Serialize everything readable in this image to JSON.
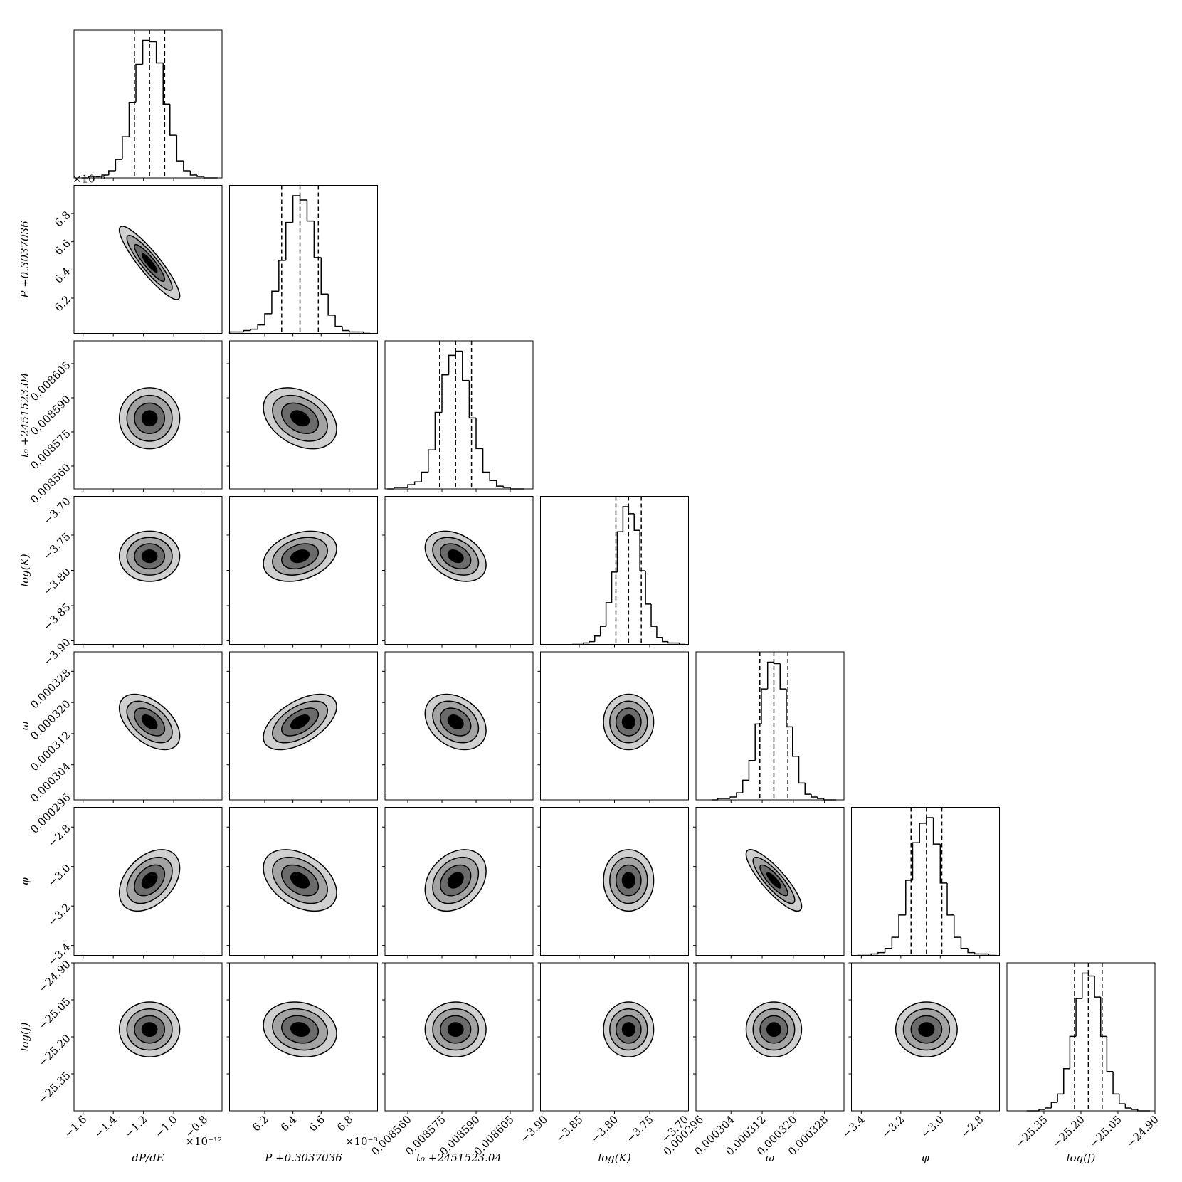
{
  "chart_data": {
    "type": "corner",
    "params": [
      {
        "label": "dP/dE",
        "offset_text": "×10⁻¹²",
        "lim": [
          -1.66,
          -0.68
        ],
        "ticks": [
          {
            "value": -1.6,
            "label": "−1.6"
          },
          {
            "value": -1.4,
            "label": "−1.4"
          },
          {
            "value": -1.2,
            "label": "−1.2"
          },
          {
            "value": -1.0,
            "label": "−1.0"
          },
          {
            "value": -0.8,
            "label": "−0.8"
          }
        ],
        "mean": -1.16,
        "std": 0.1,
        "quantiles": [
          -1.26,
          -1.16,
          -1.06
        ],
        "bins": [
          -1.61,
          -1.565,
          -1.52,
          -1.475,
          -1.43,
          -1.385,
          -1.34,
          -1.295,
          -1.25,
          -1.205,
          -1.16,
          -1.115,
          -1.07,
          -1.025,
          -0.98,
          -0.935,
          -0.89,
          -0.845,
          -0.8,
          -0.755,
          -0.71
        ],
        "counts": [
          0,
          1,
          1,
          2,
          5,
          13,
          29,
          53,
          80,
          97,
          96,
          81,
          52,
          30,
          12,
          5,
          2,
          1,
          0,
          0
        ]
      },
      {
        "label": "P +0.3037036",
        "offset_text": "×10⁻⁸",
        "lim": [
          5.95,
          7.0
        ],
        "ticks": [
          6.2,
          6.4,
          6.6,
          6.8
        ],
        "mean": 6.45,
        "std": 0.13,
        "quantiles": [
          6.32,
          6.45,
          6.58
        ],
        "bins": [
          5.95,
          6.0,
          6.05,
          6.1,
          6.15,
          6.2,
          6.25,
          6.3,
          6.35,
          6.4,
          6.45,
          6.5,
          6.55,
          6.6,
          6.65,
          6.7,
          6.75,
          6.8,
          6.85,
          6.9,
          6.95
        ],
        "counts": [
          1,
          1,
          2,
          3,
          6,
          14,
          30,
          52,
          79,
          98,
          95,
          80,
          54,
          28,
          13,
          5,
          2,
          1,
          1,
          0
        ]
      },
      {
        "label": "t₀ +2451523.04",
        "lim": [
          0.00855,
          0.008615
        ],
        "ticks": [
          {
            "value": 0.00856,
            "label": "0.008560"
          },
          0.008575,
          {
            "value": 0.00859,
            "label": "0.008590"
          },
          0.008605
        ],
        "mean": 0.008581,
        "std": 6.7e-06,
        "quantiles": [
          0.008574,
          0.008581,
          0.008588
        ],
        "bins": [
          0.008551,
          0.008554,
          0.008557,
          0.00856,
          0.008563,
          0.008566,
          0.008569,
          0.008572,
          0.008575,
          0.008578,
          0.008581,
          0.008584,
          0.008587,
          0.00859,
          0.008593,
          0.008596,
          0.008599,
          0.008602,
          0.008605,
          0.008608,
          0.008611
        ],
        "counts": [
          0,
          1,
          1,
          3,
          5,
          12,
          28,
          55,
          82,
          96,
          99,
          78,
          51,
          29,
          12,
          6,
          2,
          1,
          0,
          0
        ]
      },
      {
        "label": "log(K)",
        "lim": [
          -3.905,
          -3.695
        ],
        "ticks": [
          {
            "value": -3.9,
            "label": "−3.90"
          },
          {
            "value": -3.85,
            "label": "−3.85"
          },
          {
            "value": -3.8,
            "label": "−3.80"
          },
          {
            "value": -3.75,
            "label": "−3.75"
          },
          {
            "value": -3.7,
            "label": "−3.70"
          }
        ],
        "mean": -3.78,
        "std": 0.0178,
        "quantiles": [
          -3.798,
          -3.78,
          -3.762
        ],
        "bins": [
          -3.86,
          -3.852,
          -3.844,
          -3.836,
          -3.828,
          -3.82,
          -3.812,
          -3.804,
          -3.796,
          -3.788,
          -3.78,
          -3.772,
          -3.764,
          -3.756,
          -3.748,
          -3.74,
          -3.732,
          -3.724,
          -3.716,
          -3.708,
          -3.7
        ],
        "counts": [
          0,
          0,
          1,
          2,
          6,
          13,
          30,
          52,
          81,
          99,
          94,
          82,
          53,
          29,
          13,
          5,
          2,
          1,
          1,
          0
        ]
      },
      {
        "label": "ω",
        "lim": [
          0.000295,
          0.000333
        ],
        "ticks": [
          0.000296,
          0.000304,
          0.000312,
          {
            "value": 0.00032,
            "label": "0.000320"
          },
          0.000328
        ],
        "mean": 0.000315,
        "std": 3.56e-06,
        "quantiles": [
          0.0003114,
          0.000315,
          0.0003186
        ],
        "bins": [
          0.000299,
          0.0003006,
          0.0003022,
          0.0003038,
          0.0003054,
          0.000307,
          0.0003086,
          0.0003102,
          0.0003118,
          0.0003134,
          0.000315,
          0.0003166,
          0.0003182,
          0.0003198,
          0.0003214,
          0.000323,
          0.0003246,
          0.0003262,
          0.0003278,
          0.0003294,
          0.000331
        ],
        "counts": [
          0,
          1,
          1,
          2,
          5,
          14,
          28,
          54,
          79,
          98,
          97,
          79,
          52,
          31,
          12,
          4,
          2,
          1,
          0,
          0
        ]
      },
      {
        "label": "φ",
        "lim": [
          -3.45,
          -2.7
        ],
        "ticks": [
          {
            "value": -3.4,
            "label": "−3.4"
          },
          {
            "value": -3.2,
            "label": "−3.2"
          },
          {
            "value": -3.0,
            "label": "−3.0"
          },
          {
            "value": -2.8,
            "label": "−2.8"
          }
        ],
        "mean": -3.07,
        "std": 0.078,
        "quantiles": [
          -3.148,
          -3.07,
          -2.992
        ],
        "bins": [
          -3.42,
          -3.385,
          -3.35,
          -3.315,
          -3.28,
          -3.245,
          -3.21,
          -3.175,
          -3.14,
          -3.105,
          -3.07,
          -3.035,
          -3.0,
          -2.965,
          -2.93,
          -2.895,
          -2.86,
          -2.825,
          -2.79,
          -2.755,
          -2.72
        ],
        "counts": [
          0,
          0,
          1,
          2,
          5,
          13,
          29,
          54,
          81,
          95,
          99,
          80,
          52,
          29,
          13,
          5,
          2,
          1,
          1,
          0
        ]
      },
      {
        "label": "log(f)",
        "lim": [
          -25.5,
          -24.9
        ],
        "ticks": [
          {
            "value": -25.35,
            "label": "−25.35"
          },
          {
            "value": -25.2,
            "label": "−25.20"
          },
          {
            "value": -25.05,
            "label": "−25.05"
          },
          {
            "value": -24.9,
            "label": "−24.90"
          }
        ],
        "mean": -25.17,
        "std": 0.0556,
        "quantiles": [
          -25.226,
          -25.17,
          -25.114
        ],
        "bins": [
          -25.42,
          -25.395,
          -25.37,
          -25.345,
          -25.32,
          -25.295,
          -25.27,
          -25.245,
          -25.22,
          -25.195,
          -25.17,
          -25.145,
          -25.12,
          -25.095,
          -25.07,
          -25.045,
          -25.02,
          -24.995,
          -24.97,
          -24.945,
          -24.92
        ],
        "counts": [
          0,
          0,
          1,
          2,
          6,
          12,
          30,
          53,
          80,
          98,
          96,
          81,
          53,
          28,
          12,
          5,
          2,
          1,
          0,
          0
        ]
      }
    ],
    "correlations": [
      [],
      [
        -0.9
      ],
      [
        0.0,
        -0.35
      ],
      [
        0.0,
        0.3,
        -0.35
      ],
      [
        -0.5,
        0.55,
        -0.3,
        0.0
      ],
      [
        0.4,
        -0.4,
        0.3,
        0.0,
        -0.85
      ],
      [
        0.0,
        -0.15,
        0.0,
        0.0,
        0.0,
        0.0
      ]
    ],
    "contour_sigma_levels": [
      2,
      1.5,
      1,
      0.5
    ],
    "contour_colors": [
      "#d0d0d0",
      "#a3a3a3",
      "#6b6b6b",
      "#000000"
    ]
  }
}
